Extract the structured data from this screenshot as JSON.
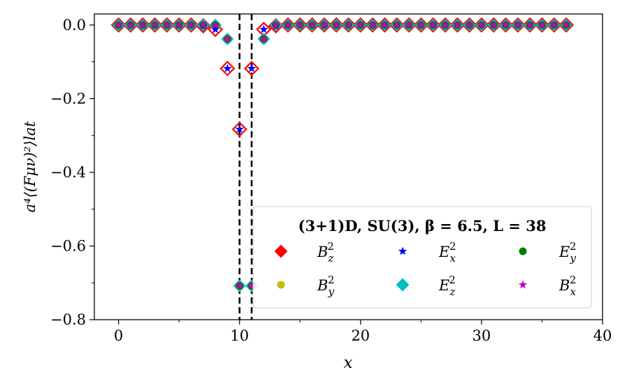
{
  "chart_data": {
    "type": "scatter",
    "title": "",
    "xlabel": "x",
    "ylabel": "a⁴⟨(Fμν)²⟩lat",
    "xlim": [
      -2,
      40
    ],
    "ylim": [
      -0.8,
      0.03
    ],
    "xticks": [
      0,
      10,
      20,
      30,
      40
    ],
    "yticks": [
      0.0,
      -0.2,
      -0.4,
      -0.6,
      -0.8
    ],
    "tick_labels": {
      "x": [
        "0",
        "10",
        "20",
        "30",
        "40"
      ],
      "y": [
        "0.0",
        "−0.2",
        "−0.4",
        "−0.6",
        "−0.8"
      ]
    },
    "vlines": [
      10,
      11
    ],
    "grid": false,
    "legend": {
      "placement": "lower-right",
      "columns": 3,
      "title": "(3+1)D, SU(3), β = 6.5, L = 38"
    },
    "series": [
      {
        "name": "B_z^2",
        "label_base": "B",
        "label_sub": "z",
        "label_sup": "2",
        "marker": "diamond-open",
        "color": "#ff0000",
        "x": [
          0,
          1,
          2,
          3,
          4,
          5,
          6,
          7,
          8,
          9,
          10,
          11,
          12,
          13,
          14,
          15,
          16,
          17,
          18,
          19,
          20,
          21,
          22,
          23,
          24,
          25,
          26,
          27,
          28,
          29,
          30,
          31,
          32,
          33,
          34,
          35,
          36,
          37
        ],
        "values": [
          0,
          0,
          0,
          0,
          0,
          0,
          0,
          -0.002,
          -0.012,
          -0.118,
          -0.283,
          -0.118,
          -0.012,
          -0.002,
          0,
          0,
          0,
          0,
          0,
          0,
          0,
          0,
          0,
          0,
          0,
          0,
          0,
          0,
          0,
          0,
          0,
          0,
          0,
          0,
          0,
          0,
          0,
          0
        ]
      },
      {
        "name": "B_y^2",
        "label_base": "B",
        "label_sub": "y",
        "label_sup": "2",
        "marker": "circle",
        "color": "#bfbf00",
        "x": [
          0,
          1,
          2,
          3,
          4,
          5,
          6,
          7,
          8,
          9,
          10,
          11,
          12,
          13,
          14,
          15,
          16,
          17,
          18,
          19,
          20,
          21,
          22,
          23,
          24,
          25,
          26,
          27,
          28,
          29,
          30,
          31,
          32,
          33,
          34,
          35,
          36,
          37
        ],
        "values": [
          0,
          0,
          0,
          0,
          0,
          0,
          0,
          0,
          0,
          -0.038,
          -0.708,
          -0.708,
          -0.038,
          0,
          0,
          0,
          0,
          0,
          0,
          0,
          0,
          0,
          0,
          0,
          0,
          0,
          0,
          0,
          0,
          0,
          0,
          0,
          0,
          0,
          0,
          0,
          0,
          0
        ]
      },
      {
        "name": "E_x^2",
        "label_base": "E",
        "label_sub": "x",
        "label_sup": "2",
        "marker": "star",
        "color": "#0000ff",
        "x": [
          0,
          1,
          2,
          3,
          4,
          5,
          6,
          7,
          8,
          9,
          10,
          11,
          12,
          13,
          14,
          15,
          16,
          17,
          18,
          19,
          20,
          21,
          22,
          23,
          24,
          25,
          26,
          27,
          28,
          29,
          30,
          31,
          32,
          33,
          34,
          35,
          36,
          37
        ],
        "values": [
          0,
          0,
          0,
          0,
          0,
          0,
          0,
          -0.002,
          -0.012,
          -0.118,
          -0.283,
          -0.118,
          -0.012,
          -0.002,
          0,
          0,
          0,
          0,
          0,
          0,
          0,
          0,
          0,
          0,
          0,
          0,
          0,
          0,
          0,
          0,
          0,
          0,
          0,
          0,
          0,
          0,
          0,
          0
        ]
      },
      {
        "name": "E_z^2",
        "label_base": "E",
        "label_sub": "z",
        "label_sup": "2",
        "marker": "diamond",
        "color": "#00bfbf",
        "x": [
          0,
          1,
          2,
          3,
          4,
          5,
          6,
          7,
          8,
          9,
          10,
          11,
          12,
          13,
          14,
          15,
          16,
          17,
          18,
          19,
          20,
          21,
          22,
          23,
          24,
          25,
          26,
          27,
          28,
          29,
          30,
          31,
          32,
          33,
          34,
          35,
          36,
          37
        ],
        "values": [
          0,
          0,
          0,
          0,
          0,
          0,
          0,
          0,
          0,
          -0.038,
          -0.708,
          -0.708,
          -0.038,
          0,
          0,
          0,
          0,
          0,
          0,
          0,
          0,
          0,
          0,
          0,
          0,
          0,
          0,
          0,
          0,
          0,
          0,
          0,
          0,
          0,
          0,
          0,
          0,
          0
        ]
      },
      {
        "name": "E_y^2",
        "label_base": "E",
        "label_sub": "y",
        "label_sup": "2",
        "marker": "circle",
        "color": "#008000",
        "x": [
          0,
          1,
          2,
          3,
          4,
          5,
          6,
          7,
          8,
          9,
          10,
          11,
          12,
          13,
          14,
          15,
          16,
          17,
          18,
          19,
          20,
          21,
          22,
          23,
          24,
          25,
          26,
          27,
          28,
          29,
          30,
          31,
          32,
          33,
          34,
          35,
          36,
          37
        ],
        "values": [
          0,
          0,
          0,
          0,
          0,
          0,
          0,
          0,
          0,
          -0.038,
          -0.708,
          -0.708,
          -0.038,
          0,
          0,
          0,
          0,
          0,
          0,
          0,
          0,
          0,
          0,
          0,
          0,
          0,
          0,
          0,
          0,
          0,
          0,
          0,
          0,
          0,
          0,
          0,
          0,
          0
        ]
      },
      {
        "name": "B_x^2",
        "label_base": "B",
        "label_sub": "x",
        "label_sup": "2",
        "marker": "star",
        "color": "#bf00bf",
        "x": [
          0,
          1,
          2,
          3,
          4,
          5,
          6,
          7,
          8,
          9,
          10,
          11,
          12,
          13,
          14,
          15,
          16,
          17,
          18,
          19,
          20,
          21,
          22,
          23,
          24,
          25,
          26,
          27,
          28,
          29,
          30,
          31,
          32,
          33,
          34,
          35,
          36,
          37
        ],
        "values": [
          0,
          0,
          0,
          0,
          0,
          0,
          0,
          0,
          0,
          -0.038,
          -0.708,
          -0.708,
          -0.038,
          0,
          0,
          0,
          0,
          0,
          0,
          0,
          0,
          0,
          0,
          0,
          0,
          0,
          0,
          0,
          0,
          0,
          0,
          0,
          0,
          0,
          0,
          0,
          0,
          0
        ]
      }
    ],
    "legend_order": [
      "B_z^2",
      "E_x^2",
      "E_y^2",
      "B_y^2",
      "E_z^2",
      "B_x^2"
    ]
  }
}
